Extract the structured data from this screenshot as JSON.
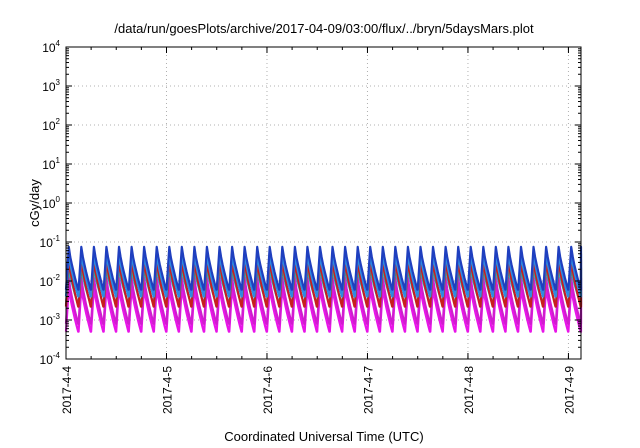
{
  "chart_data": {
    "type": "line",
    "title": "/data/run/goesPlots/archive/2017-04-09/03:00/flux/../bryn/5daysMars.plot",
    "xlabel": "Coordinated Universal Time (UTC)",
    "ylabel": "cGy/day",
    "yscale": "log",
    "ylim": [
      0.0001,
      10000
    ],
    "xlim": [
      "2017-04-04 00:00",
      "2017-04-09 03:00"
    ],
    "grid": true,
    "y_ticks": [
      {
        "base": "10",
        "exp": "-4"
      },
      {
        "base": "10",
        "exp": "-3"
      },
      {
        "base": "10",
        "exp": "-2"
      },
      {
        "base": "10",
        "exp": "-1"
      },
      {
        "base": "10",
        "exp": "0"
      },
      {
        "base": "10",
        "exp": "1"
      },
      {
        "base": "10",
        "exp": "2"
      },
      {
        "base": "10",
        "exp": "3"
      },
      {
        "base": "10",
        "exp": "4"
      }
    ],
    "x_ticks": [
      "2017-4-4",
      "2017-4-5",
      "2017-4-6",
      "2017-4-7",
      "2017-4-8",
      "2017-4-9"
    ],
    "sawtooth_period_hours": 3,
    "series": [
      {
        "color": "#1f3fbf",
        "peak": 0.075,
        "trough": 0.006
      },
      {
        "color": "#2f8ae0",
        "peak": 0.05,
        "trough": 0.004
      },
      {
        "color": "#c81e1e",
        "peak": 0.035,
        "trough": 0.0022
      },
      {
        "color": "#1fb0b0",
        "peak": 0.022,
        "trough": 0.0025
      },
      {
        "color": "#d01ccf",
        "peak": 0.012,
        "trough": 0.0008
      },
      {
        "color": "#e815e8",
        "peak": 0.007,
        "trough": 0.0005
      }
    ]
  }
}
